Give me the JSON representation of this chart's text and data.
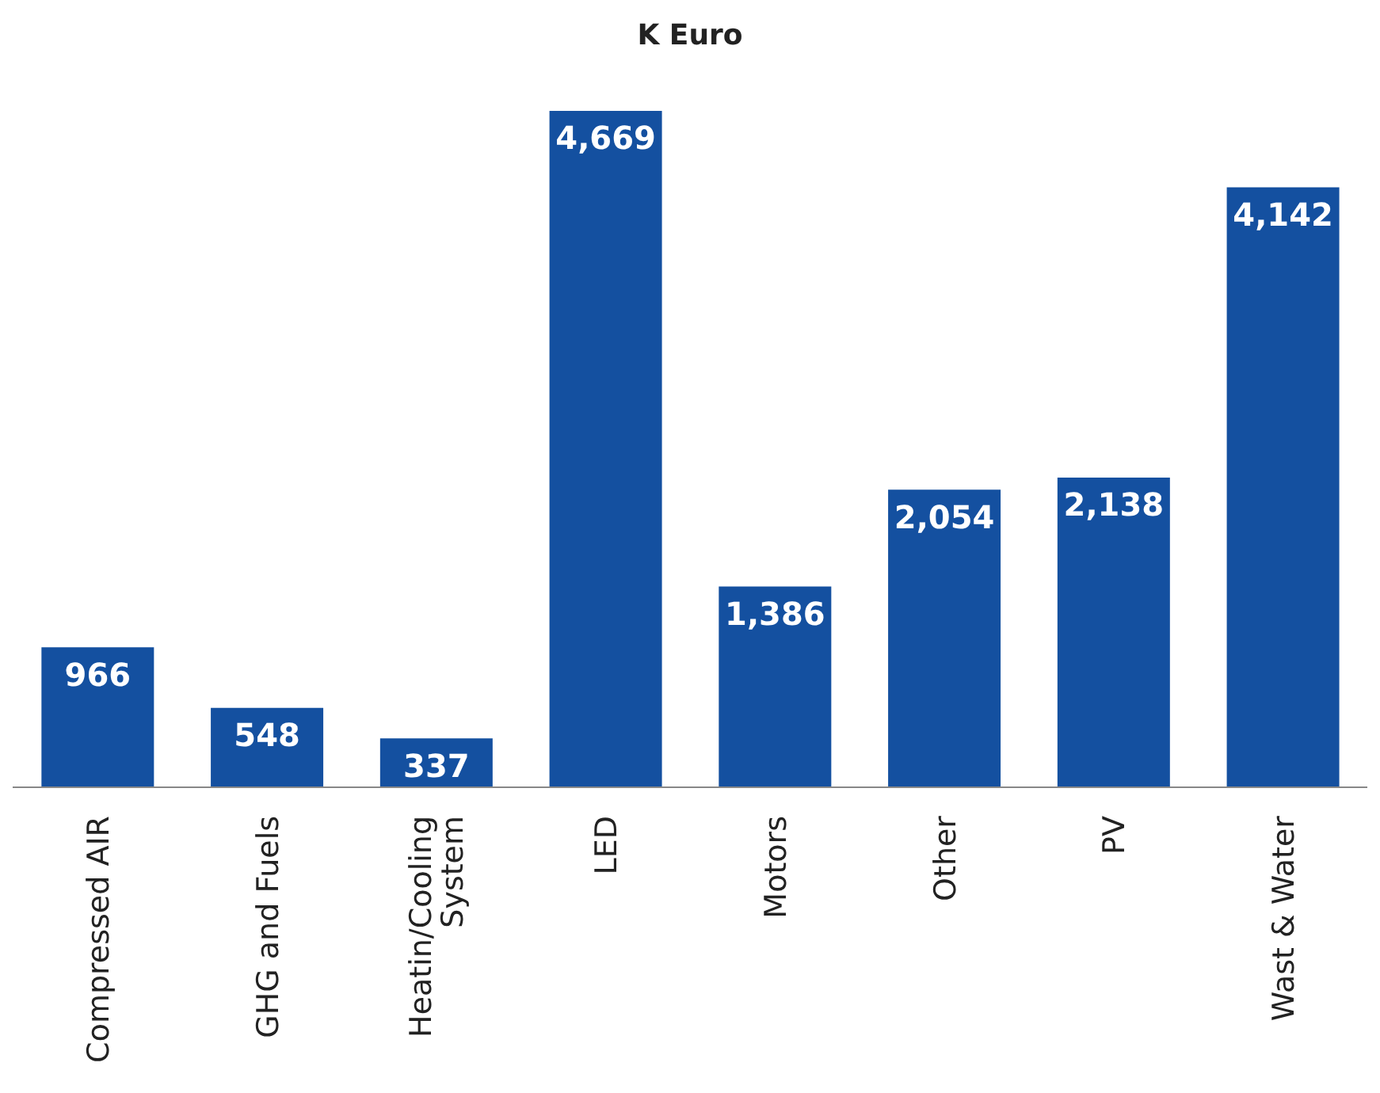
{
  "chart_data": {
    "type": "bar",
    "title": "K Euro",
    "categories": [
      "Compressed AIR",
      "GHG and Fuels",
      "Heatin/Cooling System",
      "LED",
      "Motors",
      "Other",
      "PV",
      "Wast & Water"
    ],
    "values": [
      966,
      548,
      337,
      4669,
      1386,
      2054,
      2138,
      4142
    ],
    "value_labels": [
      "966",
      "548",
      "337",
      "4,669",
      "1,386",
      "2,054",
      "2,138",
      "4,142"
    ],
    "color": "#1450a0",
    "grid": false,
    "legend": false,
    "tick_labels": "x"
  }
}
